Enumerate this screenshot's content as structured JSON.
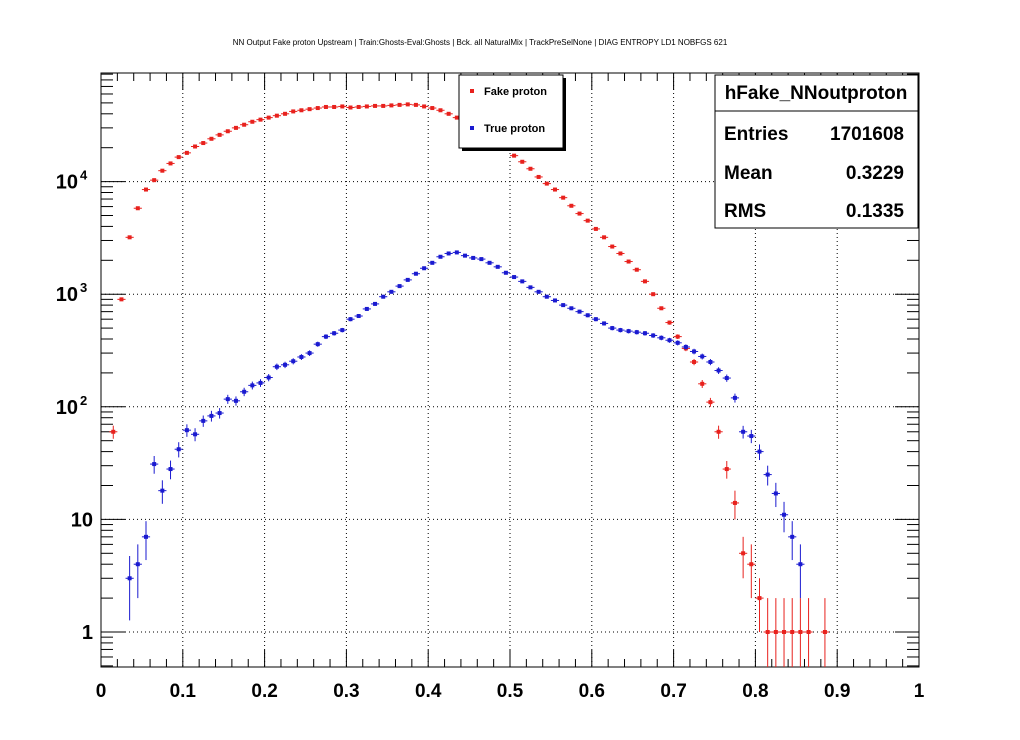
{
  "chart_data": {
    "type": "scatter",
    "title": "NN Output Fake proton Upstream | Train:Ghosts-Eval:Ghosts | Bck. all NaturalMix | TrackPreSelNone | DIAG ENTROPY LD1 NOBFGS 621",
    "xlim": [
      0,
      1
    ],
    "ylim": [
      0.5,
      160000
    ],
    "yscale": "log",
    "grid": true,
    "x_ticks": [
      "0",
      "0.1",
      "0.2",
      "0.3",
      "0.4",
      "0.5",
      "0.6",
      "0.7",
      "0.8",
      "0.9",
      "1"
    ],
    "y_ticks": [
      {
        "value": 1,
        "base": "1",
        "exp": ""
      },
      {
        "value": 10,
        "base": "10",
        "exp": ""
      },
      {
        "value": 100,
        "base": "10",
        "exp": "2"
      },
      {
        "value": 1000,
        "base": "10",
        "exp": "3"
      },
      {
        "value": 10000,
        "base": "10",
        "exp": "4"
      }
    ],
    "legend": {
      "placement": "top-center"
    },
    "stats": {
      "name": "hFake_NNoutproton",
      "rows": [
        {
          "label": "Entries",
          "value": "1701608"
        },
        {
          "label": "Mean",
          "value": "0.3229"
        },
        {
          "label": "RMS",
          "value": "0.1335"
        }
      ]
    },
    "bin_width": 0.01,
    "series": [
      {
        "name": "Fake proton",
        "color": "#e8211d",
        "x": [
          0.015,
          0.025,
          0.035,
          0.045,
          0.055,
          0.065,
          0.075,
          0.085,
          0.095,
          0.105,
          0.115,
          0.125,
          0.135,
          0.145,
          0.155,
          0.165,
          0.175,
          0.185,
          0.195,
          0.205,
          0.215,
          0.225,
          0.235,
          0.245,
          0.255,
          0.265,
          0.275,
          0.285,
          0.295,
          0.305,
          0.315,
          0.325,
          0.335,
          0.345,
          0.355,
          0.365,
          0.375,
          0.385,
          0.395,
          0.405,
          0.415,
          0.425,
          0.435,
          0.445,
          0.455,
          0.465,
          0.475,
          0.485,
          0.495,
          0.505,
          0.515,
          0.525,
          0.535,
          0.545,
          0.555,
          0.565,
          0.575,
          0.585,
          0.595,
          0.605,
          0.615,
          0.625,
          0.635,
          0.645,
          0.655,
          0.665,
          0.675,
          0.685,
          0.695,
          0.705,
          0.715,
          0.725,
          0.735,
          0.745,
          0.755,
          0.765,
          0.775,
          0.785,
          0.795,
          0.805,
          0.815,
          0.825,
          0.835,
          0.845,
          0.855,
          0.865,
          0.885
        ],
        "y": [
          60,
          900,
          3200,
          5800,
          8500,
          10300,
          12500,
          14500,
          16500,
          18000,
          20500,
          22000,
          24000,
          26000,
          28000,
          30000,
          32000,
          34000,
          35500,
          37000,
          38500,
          40000,
          42000,
          43000,
          44000,
          45000,
          46000,
          46000,
          46500,
          45500,
          46000,
          46500,
          47000,
          47000,
          47500,
          48000,
          48500,
          48000,
          46500,
          45000,
          43000,
          40000,
          37000,
          34000,
          30500,
          27000,
          24000,
          21500,
          19500,
          17000,
          15000,
          13000,
          11000,
          9600,
          8500,
          7200,
          6100,
          5200,
          4500,
          3800,
          3200,
          2650,
          2300,
          1950,
          1650,
          1300,
          1000,
          750,
          560,
          420,
          330,
          250,
          160,
          110,
          60,
          28,
          14,
          5,
          4,
          2,
          1,
          1,
          1,
          1,
          1,
          1,
          1
        ],
        "err": [
          8,
          30,
          57,
          76,
          92,
          101,
          112,
          120,
          128,
          134,
          143,
          148,
          155,
          161,
          167,
          173,
          179,
          184,
          188,
          192,
          196,
          200,
          205,
          207,
          210,
          212,
          214,
          214,
          216,
          213,
          214,
          216,
          217,
          217,
          218,
          219,
          220,
          219,
          216,
          212,
          207,
          200,
          192,
          184,
          175,
          164,
          155,
          147,
          140,
          130,
          122,
          114,
          105,
          98,
          92,
          85,
          78,
          72,
          67,
          62,
          57,
          51,
          48,
          44,
          41,
          36,
          32,
          27,
          24,
          20,
          18,
          16,
          13,
          10,
          8,
          5,
          4,
          2,
          2,
          1,
          1,
          1,
          1,
          1,
          1,
          1,
          1
        ]
      },
      {
        "name": "True proton",
        "color": "#1a1ad0",
        "x": [
          0.035,
          0.045,
          0.055,
          0.065,
          0.075,
          0.085,
          0.095,
          0.105,
          0.115,
          0.125,
          0.135,
          0.145,
          0.155,
          0.165,
          0.175,
          0.185,
          0.195,
          0.205,
          0.215,
          0.225,
          0.235,
          0.245,
          0.255,
          0.265,
          0.275,
          0.285,
          0.295,
          0.305,
          0.315,
          0.325,
          0.335,
          0.345,
          0.355,
          0.365,
          0.375,
          0.385,
          0.395,
          0.405,
          0.415,
          0.425,
          0.435,
          0.445,
          0.455,
          0.465,
          0.475,
          0.485,
          0.495,
          0.505,
          0.515,
          0.525,
          0.535,
          0.545,
          0.555,
          0.565,
          0.575,
          0.585,
          0.595,
          0.605,
          0.615,
          0.625,
          0.635,
          0.645,
          0.655,
          0.665,
          0.675,
          0.685,
          0.695,
          0.705,
          0.715,
          0.725,
          0.735,
          0.745,
          0.755,
          0.765,
          0.775,
          0.785,
          0.795,
          0.805,
          0.815,
          0.825,
          0.835,
          0.845,
          0.855
        ],
        "y": [
          3,
          4,
          7,
          31,
          18,
          28,
          42,
          62,
          57,
          75,
          83,
          88,
          117,
          113,
          136,
          155,
          163,
          182,
          227,
          236,
          254,
          277,
          300,
          360,
          420,
          450,
          480,
          600,
          640,
          740,
          820,
          950,
          1050,
          1180,
          1340,
          1520,
          1700,
          1900,
          2150,
          2300,
          2350,
          2200,
          2100,
          2050,
          1900,
          1750,
          1550,
          1420,
          1300,
          1150,
          1050,
          950,
          880,
          800,
          750,
          700,
          650,
          600,
          550,
          500,
          480,
          470,
          460,
          450,
          430,
          410,
          390,
          370,
          340,
          310,
          280,
          250,
          210,
          180,
          120,
          60,
          55,
          40,
          25,
          17,
          11,
          7,
          4
        ]
      }
    ]
  }
}
